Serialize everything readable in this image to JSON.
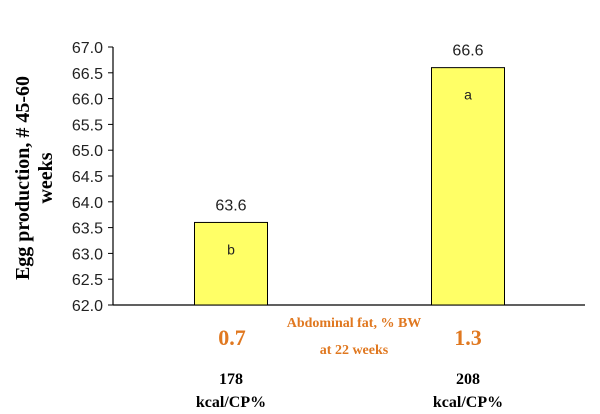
{
  "chart_data": {
    "type": "bar",
    "ylabel_line1": "Egg production, # 45-60",
    "ylabel_line2": "weeks",
    "ylim": [
      62.0,
      67.0
    ],
    "yticks": [
      "62.0",
      "62.5",
      "63.0",
      "63.5",
      "64.0",
      "64.5",
      "65.0",
      "65.5",
      "66.0",
      "66.5",
      "67.0"
    ],
    "categories": [
      {
        "line1": "178",
        "line2": "kcal/CP%"
      },
      {
        "line1": "208",
        "line2": "kcal/CP%"
      }
    ],
    "values": [
      63.6,
      66.6
    ],
    "value_labels": [
      "63.6",
      "66.6"
    ],
    "letters": [
      "b",
      "a"
    ],
    "abdominal_fat": {
      "title_line1": "Abdominal fat, % BW",
      "title_line2": "at 22 weeks",
      "values": [
        "0.7",
        "1.3"
      ]
    },
    "colors": {
      "bar_fill": "#FFFF66",
      "bar_stroke": "#000000",
      "fat_text": "#E07820",
      "axis": "#000000"
    },
    "grid": false,
    "legend": "none"
  }
}
